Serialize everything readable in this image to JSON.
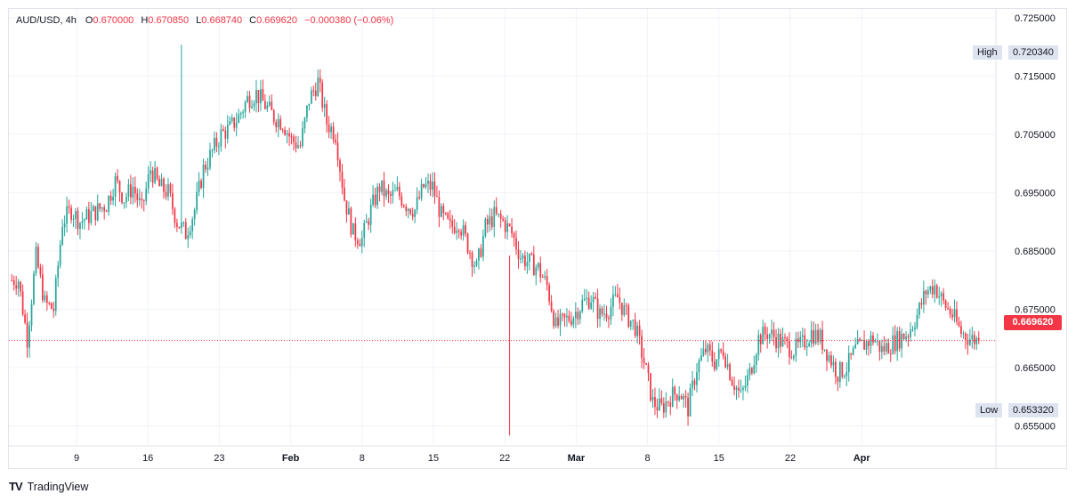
{
  "legend": {
    "symbol": "AUD/USD, 4h",
    "open_label": "O",
    "open": "0.670000",
    "high_label": "H",
    "high": "0.670850",
    "low_label": "L",
    "low": "0.668740",
    "close_label": "C",
    "close": "0.669620",
    "change": "−0.000380 (−0.06%)"
  },
  "range_tags": {
    "high_label": "High",
    "high_value": "0.720340",
    "low_label": "Low",
    "low_value": "0.653320"
  },
  "last_price_tag": "0.669620",
  "brand": {
    "logo": "TV",
    "name": "TradingView"
  },
  "colors": {
    "up": "#26a69a",
    "down": "#f23645",
    "grid": "#f0f3fa",
    "axis_text": "#131722"
  },
  "chart_data": {
    "type": "candlestick",
    "symbol": "AUD/USD",
    "interval": "4h",
    "y_ticks": [
      "0.725000",
      "0.715000",
      "0.705000",
      "0.695000",
      "0.685000",
      "0.675000",
      "0.665000",
      "0.655000"
    ],
    "ylim": [
      0.6517,
      0.7265
    ],
    "x_ticks": [
      "9",
      "16",
      "23",
      "Feb",
      "8",
      "15",
      "22",
      "Mar",
      "8",
      "15",
      "22",
      "Apr"
    ],
    "last_price": 0.66962,
    "period_high": 0.72034,
    "period_low": 0.65332,
    "daily_closes_approx": [
      0.68,
      0.68,
      0.67,
      0.684,
      0.676,
      0.675,
      0.69,
      0.692,
      0.69,
      0.691,
      0.692,
      0.693,
      0.697,
      0.694,
      0.696,
      0.692,
      0.699,
      0.696,
      0.695,
      0.69,
      0.688,
      0.692,
      0.699,
      0.702,
      0.705,
      0.706,
      0.708,
      0.711,
      0.712,
      0.71,
      0.708,
      0.707,
      0.704,
      0.703,
      0.711,
      0.714,
      0.707,
      0.705,
      0.694,
      0.688,
      0.687,
      0.692,
      0.696,
      0.694,
      0.695,
      0.693,
      0.692,
      0.696,
      0.696,
      0.691,
      0.689,
      0.69,
      0.686,
      0.682,
      0.689,
      0.691,
      0.69,
      0.688,
      0.684,
      0.683,
      0.682,
      0.679,
      0.672,
      0.673,
      0.674,
      0.676,
      0.677,
      0.674,
      0.675,
      0.677,
      0.674,
      0.672,
      0.666,
      0.659,
      0.658,
      0.66,
      0.661,
      0.658,
      0.665,
      0.668,
      0.666,
      0.668,
      0.663,
      0.66,
      0.664,
      0.67,
      0.671,
      0.67,
      0.669,
      0.668,
      0.669,
      0.671,
      0.67,
      0.667,
      0.664,
      0.665,
      0.668,
      0.669,
      0.67,
      0.668,
      0.669,
      0.67,
      0.671,
      0.674,
      0.678,
      0.679,
      0.676,
      0.674,
      0.671,
      0.67,
      0.6696
    ]
  }
}
